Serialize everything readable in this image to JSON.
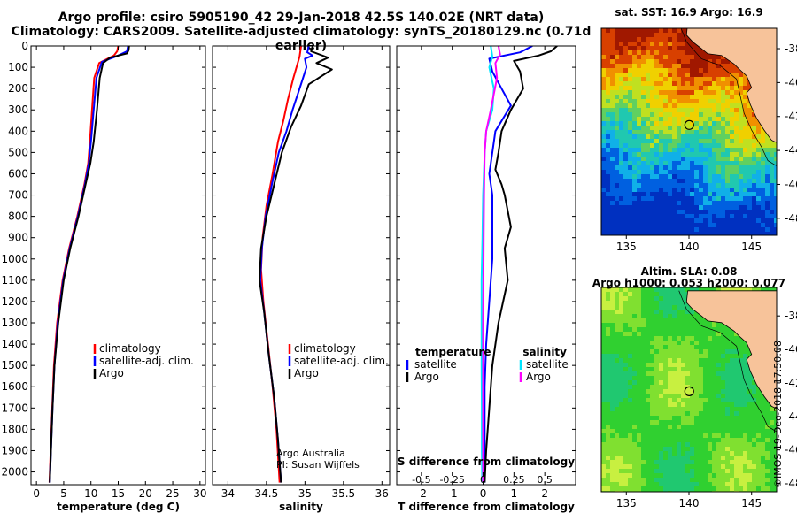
{
  "header": {
    "title_line1": "Argo profile: csiro 5905190_42 29-Jan-2018 42.5S 140.02E (NRT data)",
    "title_line2": "Climatology: CARS2009. Satellite-adjusted climatology: synTS_20180129.nc (0.71d earlier)"
  },
  "credit": "©IMOS 19-Dec-2018 17:50:08",
  "colors": {
    "climatology": "#ff0000",
    "satellite": "#0000ff",
    "argo": "#000000",
    "sal_satellite": "#00e5ff",
    "sal_argo": "#ff00ff"
  },
  "chart_data": [
    {
      "id": "temperature",
      "type": "line",
      "xlabel": "temperature (deg C)",
      "ylabel": "",
      "xlim": [
        -1,
        31
      ],
      "ylim": [
        2060,
        0
      ],
      "xticks": [
        0,
        5,
        10,
        15,
        20,
        25,
        30
      ],
      "yticks": [
        0,
        100,
        200,
        300,
        400,
        500,
        600,
        700,
        800,
        900,
        1000,
        1100,
        1200,
        1300,
        1400,
        1500,
        1600,
        1700,
        1800,
        1900,
        2000
      ],
      "legend": {
        "placement": "lower-right",
        "entries": [
          "climatology",
          "satellite-adj. clim.",
          "Argo"
        ]
      },
      "series": [
        {
          "name": "climatology",
          "color": "#ff0000",
          "points": [
            [
              15.0,
              0
            ],
            [
              14.8,
              25
            ],
            [
              14.2,
              45
            ],
            [
              11.5,
              80
            ],
            [
              10.6,
              150
            ],
            [
              10.2,
              300
            ],
            [
              9.8,
              450
            ],
            [
              9.5,
              550
            ],
            [
              8.8,
              650
            ],
            [
              7.5,
              800
            ],
            [
              6.0,
              950
            ],
            [
              4.8,
              1100
            ],
            [
              3.8,
              1300
            ],
            [
              3.2,
              1500
            ],
            [
              2.9,
              1700
            ],
            [
              2.6,
              1900
            ],
            [
              2.4,
              2050
            ]
          ]
        },
        {
          "name": "satellite-adj. clim.",
          "color": "#0000ff",
          "points": [
            [
              16.8,
              0
            ],
            [
              16.6,
              25
            ],
            [
              15.0,
              45
            ],
            [
              12.0,
              75
            ],
            [
              11.0,
              150
            ],
            [
              10.5,
              300
            ],
            [
              10.0,
              450
            ],
            [
              9.6,
              550
            ],
            [
              8.9,
              650
            ],
            [
              7.6,
              800
            ],
            [
              6.1,
              950
            ],
            [
              4.9,
              1100
            ],
            [
              3.9,
              1300
            ],
            [
              3.3,
              1500
            ],
            [
              2.95,
              1700
            ],
            [
              2.65,
              1900
            ],
            [
              2.45,
              2050
            ]
          ]
        },
        {
          "name": "Argo",
          "color": "#000000",
          "points": [
            [
              17.0,
              0
            ],
            [
              16.9,
              20
            ],
            [
              16.6,
              35
            ],
            [
              13.5,
              55
            ],
            [
              12.2,
              80
            ],
            [
              11.6,
              150
            ],
            [
              11.1,
              300
            ],
            [
              10.5,
              450
            ],
            [
              9.9,
              550
            ],
            [
              9.0,
              650
            ],
            [
              7.7,
              800
            ],
            [
              6.2,
              950
            ],
            [
              5.0,
              1100
            ],
            [
              4.0,
              1300
            ],
            [
              3.3,
              1500
            ],
            [
              2.95,
              1700
            ],
            [
              2.65,
              1900
            ],
            [
              2.45,
              2050
            ]
          ]
        }
      ]
    },
    {
      "id": "salinity",
      "type": "line",
      "xlabel": "salinity",
      "ylabel": "",
      "xlim": [
        33.8,
        36.1
      ],
      "ylim": [
        2060,
        0
      ],
      "xticks": [
        34,
        34.5,
        35,
        35.5,
        36
      ],
      "xtick_labels": [
        "34",
        "34.5",
        "35",
        "35.5",
        "36"
      ],
      "legend": {
        "placement": "lower-right",
        "entries": [
          "climatology",
          "satellite-adj. clim.",
          "Argo"
        ]
      },
      "annotation": [
        "Argo Australia",
        "PI: Susan Wijffels"
      ],
      "series": [
        {
          "name": "climatology",
          "color": "#ff0000",
          "points": [
            [
              34.95,
              0
            ],
            [
              34.93,
              50
            ],
            [
              34.85,
              150
            ],
            [
              34.78,
              250
            ],
            [
              34.72,
              350
            ],
            [
              34.65,
              450
            ],
            [
              34.58,
              600
            ],
            [
              34.5,
              750
            ],
            [
              34.45,
              900
            ],
            [
              34.43,
              1050
            ],
            [
              34.46,
              1200
            ],
            [
              34.52,
              1400
            ],
            [
              34.58,
              1600
            ],
            [
              34.63,
              1800
            ],
            [
              34.67,
              2050
            ]
          ]
        },
        {
          "name": "satellite-adj. clim.",
          "color": "#0000ff",
          "points": [
            [
              35.05,
              0
            ],
            [
              35.03,
              30
            ],
            [
              35.1,
              45
            ],
            [
              35.0,
              60
            ],
            [
              35.02,
              100
            ],
            [
              34.93,
              200
            ],
            [
              34.84,
              300
            ],
            [
              34.76,
              400
            ],
            [
              34.66,
              500
            ],
            [
              34.57,
              650
            ],
            [
              34.49,
              800
            ],
            [
              34.44,
              950
            ],
            [
              34.42,
              1100
            ],
            [
              34.47,
              1250
            ],
            [
              34.53,
              1450
            ],
            [
              34.6,
              1650
            ],
            [
              34.65,
              1850
            ],
            [
              34.69,
              2050
            ]
          ]
        },
        {
          "name": "Argo",
          "color": "#000000",
          "points": [
            [
              35.1,
              0
            ],
            [
              35.08,
              25
            ],
            [
              35.3,
              55
            ],
            [
              35.15,
              80
            ],
            [
              35.35,
              110
            ],
            [
              35.05,
              180
            ],
            [
              34.95,
              280
            ],
            [
              34.82,
              380
            ],
            [
              34.7,
              500
            ],
            [
              34.6,
              650
            ],
            [
              34.5,
              800
            ],
            [
              34.43,
              950
            ],
            [
              34.41,
              1100
            ],
            [
              34.47,
              1250
            ],
            [
              34.53,
              1450
            ],
            [
              34.6,
              1650
            ],
            [
              34.65,
              1850
            ],
            [
              34.69,
              2050
            ]
          ]
        }
      ]
    },
    {
      "id": "difference",
      "type": "line",
      "xlabel": "T difference from climatology",
      "xlabel2": "S difference from climatology",
      "ylabel": "",
      "xlim": [
        -2.8,
        3.0
      ],
      "ylim": [
        2060,
        0
      ],
      "xticks": [
        -2,
        -1,
        0,
        1,
        2
      ],
      "xticks2": [
        -0.5,
        -0.25,
        0,
        0.25,
        0.5
      ],
      "xtick2_labels": [
        "-0.5",
        "-0.25",
        "0",
        "0.25",
        "0.5"
      ],
      "legend_left": {
        "title": "temperature",
        "entries": [
          "satellite",
          "Argo"
        ]
      },
      "legend_right": {
        "title": "salinity",
        "entries": [
          "satellite",
          "Argo"
        ]
      },
      "series": [
        {
          "name": "T satellite",
          "color": "#0000ff",
          "points": [
            [
              1.6,
              0
            ],
            [
              1.2,
              30
            ],
            [
              0.2,
              60
            ],
            [
              0.3,
              120
            ],
            [
              0.6,
              200
            ],
            [
              0.9,
              280
            ],
            [
              0.4,
              400
            ],
            [
              0.3,
              500
            ],
            [
              0.2,
              600
            ],
            [
              0.3,
              700
            ],
            [
              0.3,
              800
            ],
            [
              0.3,
              1000
            ],
            [
              0.2,
              1200
            ],
            [
              0.1,
              1400
            ],
            [
              0.05,
              1600
            ],
            [
              0.05,
              1800
            ],
            [
              0.05,
              2050
            ]
          ]
        },
        {
          "name": "T Argo",
          "color": "#000000",
          "points": [
            [
              2.4,
              0
            ],
            [
              2.2,
              25
            ],
            [
              1.8,
              45
            ],
            [
              1.0,
              70
            ],
            [
              1.2,
              120
            ],
            [
              1.3,
              200
            ],
            [
              0.9,
              300
            ],
            [
              0.6,
              400
            ],
            [
              0.5,
              500
            ],
            [
              0.4,
              580
            ],
            [
              0.6,
              650
            ],
            [
              0.7,
              700
            ],
            [
              0.9,
              850
            ],
            [
              0.7,
              950
            ],
            [
              0.8,
              1100
            ],
            [
              0.5,
              1300
            ],
            [
              0.3,
              1500
            ],
            [
              0.2,
              1700
            ],
            [
              0.1,
              1900
            ],
            [
              0.05,
              2050
            ]
          ]
        },
        {
          "name": "S satellite",
          "color": "#00e5ff",
          "points": [
            [
              0.25,
              0
            ],
            [
              0.3,
              50
            ],
            [
              0.2,
              100
            ],
            [
              0.35,
              200
            ],
            [
              0.3,
              300
            ],
            [
              0.1,
              400
            ],
            [
              0.05,
              500
            ],
            [
              0.0,
              700
            ],
            [
              -0.02,
              900
            ],
            [
              -0.05,
              1100
            ],
            [
              -0.05,
              1300
            ],
            [
              -0.05,
              1500
            ],
            [
              -0.04,
              1700
            ],
            [
              -0.04,
              1900
            ],
            [
              -0.03,
              2050
            ]
          ]
        },
        {
          "name": "S Argo",
          "color": "#ff00ff",
          "points": [
            [
              0.5,
              0
            ],
            [
              0.55,
              40
            ],
            [
              0.4,
              80
            ],
            [
              0.45,
              150
            ],
            [
              0.25,
              300
            ],
            [
              0.1,
              400
            ],
            [
              0.05,
              500
            ],
            [
              0.03,
              700
            ],
            [
              0.02,
              900
            ],
            [
              0.01,
              1100
            ],
            [
              0.0,
              1300
            ],
            [
              0.0,
              1500
            ],
            [
              0.0,
              1700
            ],
            [
              0.0,
              1900
            ],
            [
              0.0,
              2050
            ]
          ]
        }
      ]
    },
    {
      "id": "sst_map",
      "type": "heatmap",
      "title": "sat. SST: 16.9 Argo: 16.9",
      "xticks": [
        135,
        140,
        145
      ],
      "yticks": [
        -38,
        -40,
        -42,
        -44,
        -46,
        -48
      ],
      "xlim": [
        133,
        147
      ],
      "ylim": [
        -49,
        -36.8
      ],
      "marker": {
        "lon": 140.02,
        "lat": -42.5
      }
    },
    {
      "id": "sla_map",
      "type": "heatmap",
      "title": "Altim. SLA: 0.08",
      "subtitle": "Argo h1000: 0.053 h2000: 0.077",
      "xticks": [
        135,
        140,
        145
      ],
      "yticks": [
        -38,
        -40,
        -42,
        -44,
        -46,
        -48
      ],
      "xlim": [
        133,
        147
      ],
      "ylim": [
        -48.5,
        -36.3
      ],
      "marker": {
        "lon": 140.02,
        "lat": -42.5
      }
    }
  ]
}
